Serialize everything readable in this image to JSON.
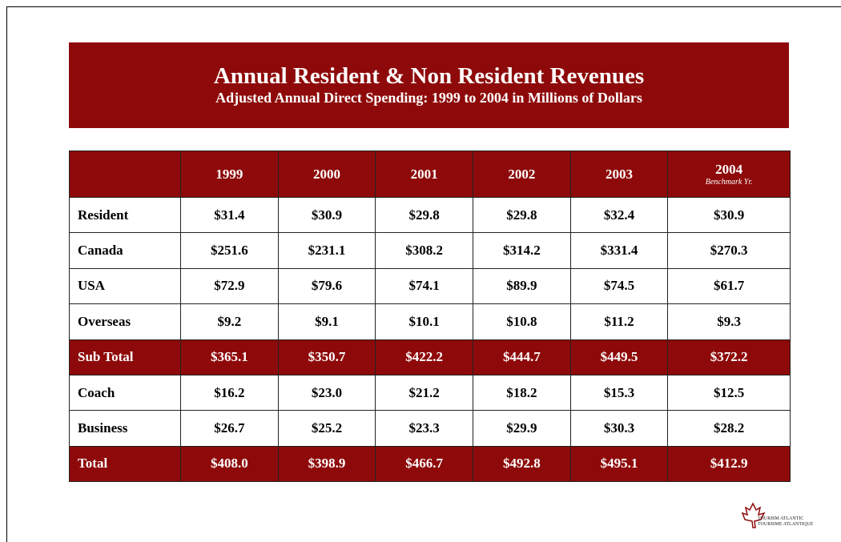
{
  "header": {
    "title": "Annual Resident & Non Resident Revenues",
    "subtitle": "Adjusted Annual Direct Spending: 1999 to 2004 in Millions of Dollars"
  },
  "table": {
    "columns": [
      "1999",
      "2000",
      "2001",
      "2002",
      "2003",
      "2004"
    ],
    "column_note": "Benchmark Yr.",
    "rows": [
      [
        "Resident",
        "$31.4",
        "$30.9",
        "$29.8",
        "$29.8",
        "$32.4",
        "$30.9"
      ],
      [
        "Canada",
        "$251.6",
        "$231.1",
        "$308.2",
        "$314.2",
        "$331.4",
        "$270.3"
      ],
      [
        "USA",
        "$72.9",
        "$79.6",
        "$74.1",
        "$89.9",
        "$74.5",
        "$61.7"
      ],
      [
        "Overseas",
        "$9.2",
        "$9.1",
        "$10.1",
        "$10.8",
        "$11.2",
        "$9.3"
      ],
      [
        "Sub Total",
        "$365.1",
        "$350.7",
        "$422.2",
        "$444.7",
        "$449.5",
        "$372.2"
      ],
      [
        "Coach",
        "$16.2",
        "$23.0",
        "$21.2",
        "$18.2",
        "$15.3",
        "$12.5"
      ],
      [
        "Business",
        "$26.7",
        "$25.2",
        "$23.3",
        "$29.9",
        "$30.3",
        "$28.2"
      ],
      [
        "Total",
        "$408.0",
        "$398.9",
        "$466.7",
        "$492.8",
        "$495.1",
        "$412.9"
      ]
    ]
  },
  "logo": {
    "line1": "TOURISM ATLANTIC",
    "line2": "TOURISME ATLANTIQUE"
  }
}
